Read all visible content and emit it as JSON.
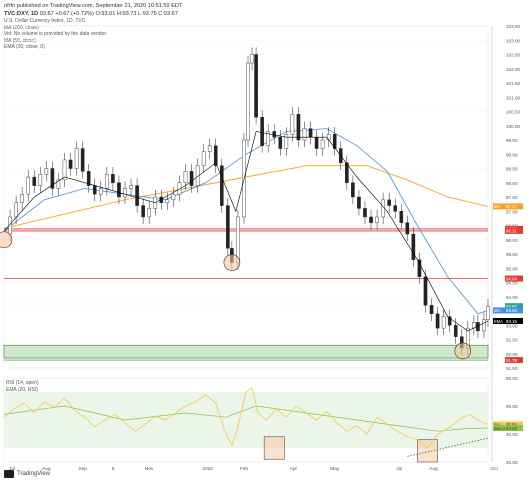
{
  "header": {
    "publisher_line": "nfrfn published on TradingView.com, September 21, 2020 10:51:59 EDT",
    "symbol": "TVC:DXY, 1D",
    "last": "93.67",
    "change": "+0.67 (+0.72%)",
    "ohlc": "O:93.01 H:93.73 L:92.75 C:93.67"
  },
  "legend": [
    "U.S. Dollar Currency Index, 1D, TVC",
    "MA (200, close)",
    "Vol: No volume is provided by the data vendor.",
    "MA (50, close)",
    "EMA (20, close, 0)"
  ],
  "rsi_legend": [
    "RSI (14, open)",
    "EMA (20, RSI)"
  ],
  "footer": {
    "brand": "TradingView"
  },
  "colors": {
    "price_up": "#26a69a",
    "price_down": "#ef5350",
    "candle_outline": "#222222",
    "ma200": "#f5a623",
    "ma50": "#4a90e2",
    "ema20": "#000000",
    "hline": "#e53935",
    "support_zone": "#cfeacb",
    "rsi_line": "#f2c94c",
    "rsi_ema": "#8bc34a",
    "rsi_band": "#e6f2e4",
    "circle_fill": "#f6c6a0",
    "box_fill": "#f6c6a0"
  },
  "chart_data": [
    {
      "type": "candlestick",
      "title": "U.S. Dollar Currency Index, 1D, TVC",
      "ylim": [
        91.5,
        103.5
      ],
      "yticks": [
        "103.50",
        "103.00",
        "102.50",
        "102.00",
        "101.50",
        "101.00",
        "100.50",
        "100.00",
        "99.50",
        "99.00",
        "98.50",
        "98.00",
        "97.50",
        "97.00",
        "96.50",
        "96.00",
        "95.50",
        "95.00",
        "94.50",
        "94.00",
        "93.50",
        "93.00",
        "92.50",
        "92.00",
        "91.50"
      ],
      "x_labels": [
        "Jul",
        "Aug",
        "Sep",
        "8",
        "Nov",
        "2020",
        "Feb",
        "Apr",
        "May",
        "Jul",
        "Aug",
        "Oct"
      ],
      "close_points": [
        [
          0,
          96.2
        ],
        [
          6,
          96.8
        ],
        [
          12,
          97.3
        ],
        [
          18,
          97.6
        ],
        [
          24,
          98.2
        ],
        [
          30,
          97.9
        ],
        [
          36,
          98.3
        ],
        [
          42,
          98.5
        ],
        [
          48,
          97.8
        ],
        [
          54,
          98.1
        ],
        [
          60,
          98.8
        ],
        [
          66,
          98.5
        ],
        [
          72,
          99.2
        ],
        [
          78,
          98.4
        ],
        [
          84,
          97.9
        ],
        [
          90,
          97.6
        ],
        [
          96,
          97.8
        ],
        [
          102,
          98.3
        ],
        [
          108,
          98.0
        ],
        [
          114,
          97.5
        ],
        [
          120,
          97.8
        ],
        [
          126,
          97.9
        ],
        [
          132,
          97.2
        ],
        [
          138,
          96.8
        ],
        [
          144,
          97.1
        ],
        [
          150,
          97.5
        ],
        [
          156,
          97.3
        ],
        [
          162,
          97.4
        ],
        [
          168,
          97.6
        ],
        [
          174,
          98.0
        ],
        [
          180,
          98.4
        ],
        [
          186,
          97.9
        ],
        [
          192,
          98.6
        ],
        [
          198,
          99.1
        ],
        [
          204,
          99.3
        ],
        [
          210,
          98.6
        ],
        [
          216,
          97.2
        ],
        [
          222,
          95.7
        ],
        [
          226,
          95.2
        ],
        [
          232,
          96.8
        ],
        [
          238,
          99.5
        ],
        [
          242,
          102.2
        ],
        [
          246,
          102.5
        ],
        [
          250,
          100.3
        ],
        [
          256,
          99.3
        ],
        [
          262,
          99.8
        ],
        [
          268,
          99.6
        ],
        [
          274,
          99.2
        ],
        [
          280,
          99.7
        ],
        [
          286,
          100.4
        ],
        [
          292,
          99.5
        ],
        [
          298,
          99.9
        ],
        [
          304,
          99.6
        ],
        [
          310,
          99.2
        ],
        [
          316,
          99.5
        ],
        [
          322,
          99.7
        ],
        [
          328,
          99.2
        ],
        [
          334,
          98.7
        ],
        [
          340,
          98.0
        ],
        [
          346,
          97.5
        ],
        [
          352,
          97.1
        ],
        [
          358,
          96.8
        ],
        [
          364,
          96.6
        ],
        [
          370,
          96.8
        ],
        [
          376,
          97.4
        ],
        [
          382,
          97.2
        ],
        [
          388,
          97.0
        ],
        [
          394,
          96.6
        ],
        [
          400,
          96.2
        ],
        [
          406,
          95.3
        ],
        [
          412,
          94.7
        ],
        [
          418,
          93.7
        ],
        [
          424,
          93.4
        ],
        [
          430,
          92.9
        ],
        [
          436,
          93.3
        ],
        [
          442,
          93.0
        ],
        [
          448,
          92.6
        ],
        [
          454,
          92.2
        ],
        [
          460,
          92.9
        ],
        [
          466,
          93.1
        ],
        [
          470,
          92.8
        ],
        [
          476,
          93.2
        ],
        [
          480,
          93.67
        ]
      ],
      "ma200_points": [
        [
          0,
          96.4
        ],
        [
          60,
          96.9
        ],
        [
          120,
          97.4
        ],
        [
          180,
          97.8
        ],
        [
          240,
          98.2
        ],
        [
          300,
          98.6
        ],
        [
          360,
          98.6
        ],
        [
          400,
          98.1
        ],
        [
          440,
          97.5
        ],
        [
          480,
          97.17
        ]
      ],
      "ma50_points": [
        [
          0,
          96.3
        ],
        [
          40,
          97.4
        ],
        [
          80,
          97.8
        ],
        [
          120,
          97.6
        ],
        [
          160,
          97.4
        ],
        [
          200,
          98.0
        ],
        [
          240,
          99.0
        ],
        [
          280,
          99.8
        ],
        [
          320,
          99.9
        ],
        [
          350,
          99.3
        ],
        [
          380,
          98.4
        ],
        [
          410,
          96.5
        ],
        [
          440,
          94.7
        ],
        [
          470,
          93.4
        ],
        [
          480,
          93.52
        ]
      ],
      "ema20_points": [
        [
          0,
          96.3
        ],
        [
          30,
          97.5
        ],
        [
          60,
          98.2
        ],
        [
          90,
          97.9
        ],
        [
          120,
          97.6
        ],
        [
          150,
          97.3
        ],
        [
          180,
          97.9
        ],
        [
          210,
          98.7
        ],
        [
          230,
          97.0
        ],
        [
          250,
          99.8
        ],
        [
          280,
          99.6
        ],
        [
          320,
          99.6
        ],
        [
          350,
          98.2
        ],
        [
          380,
          97.0
        ],
        [
          410,
          95.3
        ],
        [
          440,
          93.3
        ],
        [
          460,
          92.8
        ],
        [
          480,
          93.15
        ]
      ],
      "hlines": [
        96.38,
        96.31,
        94.64
      ],
      "support_zone": [
        91.85,
        92.3
      ],
      "support_line": 91.78,
      "axis_tags": [
        {
          "label": "MA",
          "value": "97.17",
          "color": "#f5a623"
        },
        {
          "label": "",
          "value": "96.38",
          "color": "#e53935"
        },
        {
          "label": "",
          "value": "96.31",
          "color": "#e53935"
        },
        {
          "label": "",
          "value": "94.64",
          "color": "#e53935"
        },
        {
          "label": "",
          "value": "93.67",
          "color": "#26a69a"
        },
        {
          "label": "MA",
          "value": "93.52",
          "color": "#4a90e2"
        },
        {
          "label": "EMA",
          "value": "93.15",
          "color": "#000000"
        },
        {
          "label": "",
          "value": "91.78",
          "color": "#e53935"
        }
      ],
      "markers": [
        {
          "type": "circle",
          "x": 0,
          "y": 96.0
        },
        {
          "type": "circle",
          "x": 226,
          "y": 95.2
        },
        {
          "type": "circle",
          "x": 455,
          "y": 92.1
        }
      ]
    },
    {
      "type": "line",
      "title": "RSI (14, open)",
      "ylim": [
        20,
        80
      ],
      "yticks": [
        "80.00",
        "60.00",
        "40.00",
        "20.00"
      ],
      "band": [
        30,
        70
      ],
      "rsi_points": [
        [
          0,
          52
        ],
        [
          10,
          58
        ],
        [
          20,
          62
        ],
        [
          30,
          55
        ],
        [
          40,
          63
        ],
        [
          50,
          59
        ],
        [
          60,
          66
        ],
        [
          70,
          57
        ],
        [
          80,
          52
        ],
        [
          90,
          45
        ],
        [
          100,
          50
        ],
        [
          110,
          54
        ],
        [
          120,
          48
        ],
        [
          130,
          42
        ],
        [
          140,
          47
        ],
        [
          150,
          53
        ],
        [
          160,
          50
        ],
        [
          170,
          55
        ],
        [
          180,
          60
        ],
        [
          190,
          63
        ],
        [
          200,
          68
        ],
        [
          210,
          62
        ],
        [
          220,
          40
        ],
        [
          226,
          32
        ],
        [
          232,
          45
        ],
        [
          240,
          70
        ],
        [
          246,
          73
        ],
        [
          252,
          55
        ],
        [
          260,
          50
        ],
        [
          270,
          58
        ],
        [
          280,
          52
        ],
        [
          290,
          60
        ],
        [
          300,
          55
        ],
        [
          310,
          50
        ],
        [
          320,
          56
        ],
        [
          330,
          48
        ],
        [
          340,
          42
        ],
        [
          350,
          46
        ],
        [
          360,
          40
        ],
        [
          370,
          52
        ],
        [
          380,
          47
        ],
        [
          390,
          42
        ],
        [
          400,
          38
        ],
        [
          410,
          36
        ],
        [
          420,
          30
        ],
        [
          430,
          40
        ],
        [
          440,
          44
        ],
        [
          448,
          48
        ],
        [
          455,
          52
        ],
        [
          462,
          54
        ],
        [
          470,
          50
        ],
        [
          480,
          46.84
        ]
      ],
      "ema_points": [
        [
          0,
          54
        ],
        [
          60,
          60
        ],
        [
          120,
          50
        ],
        [
          180,
          55
        ],
        [
          220,
          52
        ],
        [
          250,
          60
        ],
        [
          300,
          55
        ],
        [
          350,
          50
        ],
        [
          400,
          45
        ],
        [
          430,
          42
        ],
        [
          460,
          44
        ],
        [
          480,
          44.22
        ]
      ],
      "trend_line": [
        [
          400,
          24
        ],
        [
          480,
          37
        ]
      ],
      "boxes": [
        {
          "x0": 258,
          "x1": 278,
          "y0": 22,
          "y1": 38
        },
        {
          "x0": 410,
          "x1": 430,
          "y0": 20,
          "y1": 36
        }
      ],
      "axis_tags": [
        {
          "label": "RSI",
          "value": "46.84",
          "color": "#f2c94c"
        },
        {
          "label": "EMA (RSI)",
          "value": "44.22",
          "color": "#8bc34a"
        }
      ]
    }
  ]
}
